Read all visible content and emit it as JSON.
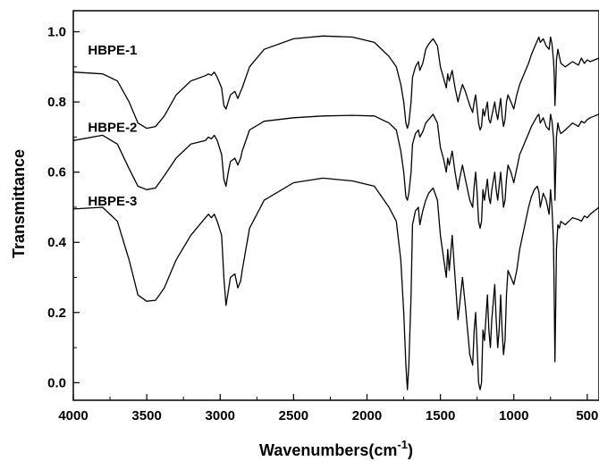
{
  "chart_data": {
    "type": "line",
    "title": "",
    "xlabel": "Wavenumbers(cm",
    "xlabel_sup": "-1",
    "ylabel": "Transmittance",
    "xlim": [
      4000,
      420
    ],
    "ylim": [
      -0.05,
      1.06
    ],
    "x_reversed": true,
    "x_ticks": [
      4000,
      3500,
      3000,
      2500,
      2000,
      1500,
      1000,
      500
    ],
    "x_tick_labels": [
      "4000",
      "3500",
      "3000",
      "2500",
      "2000",
      "1500",
      "1000",
      "500"
    ],
    "y_ticks": [
      0.0,
      0.2,
      0.4,
      0.6,
      0.8,
      1.0
    ],
    "y_tick_labels": [
      "0.0",
      "0.2",
      "0.4",
      "0.6",
      "0.8",
      "1.0"
    ],
    "grid": false,
    "legend": "none",
    "series": [
      {
        "name": "HBPE-1",
        "label_pos": [
          3900,
          0.935
        ],
        "x": [
          4000,
          3800,
          3700,
          3620,
          3560,
          3500,
          3440,
          3380,
          3300,
          3200,
          3100,
          3080,
          3060,
          3040,
          3020,
          2990,
          2975,
          2960,
          2945,
          2930,
          2900,
          2880,
          2860,
          2850,
          2800,
          2700,
          2500,
          2300,
          2100,
          1950,
          1850,
          1800,
          1770,
          1750,
          1735,
          1725,
          1715,
          1700,
          1690,
          1670,
          1650,
          1640,
          1620,
          1600,
          1580,
          1550,
          1520,
          1500,
          1480,
          1460,
          1450,
          1440,
          1420,
          1400,
          1380,
          1370,
          1350,
          1330,
          1300,
          1280,
          1270,
          1260,
          1250,
          1240,
          1230,
          1220,
          1210,
          1200,
          1180,
          1170,
          1160,
          1150,
          1130,
          1120,
          1110,
          1100,
          1090,
          1080,
          1070,
          1060,
          1050,
          1040,
          1020,
          1000,
          980,
          960,
          940,
          920,
          900,
          880,
          860,
          840,
          830,
          820,
          800,
          780,
          760,
          750,
          740,
          730,
          725,
          720,
          715,
          710,
          700,
          690,
          680,
          650,
          600,
          560,
          540,
          520,
          500,
          480,
          450,
          420
        ],
        "values": [
          0.885,
          0.88,
          0.86,
          0.8,
          0.74,
          0.725,
          0.73,
          0.76,
          0.82,
          0.86,
          0.875,
          0.88,
          0.876,
          0.885,
          0.87,
          0.84,
          0.79,
          0.78,
          0.8,
          0.82,
          0.83,
          0.81,
          0.83,
          0.84,
          0.9,
          0.95,
          0.98,
          0.988,
          0.985,
          0.97,
          0.93,
          0.9,
          0.85,
          0.8,
          0.74,
          0.725,
          0.74,
          0.8,
          0.87,
          0.9,
          0.915,
          0.89,
          0.91,
          0.95,
          0.965,
          0.98,
          0.96,
          0.9,
          0.87,
          0.84,
          0.88,
          0.86,
          0.89,
          0.84,
          0.8,
          0.82,
          0.85,
          0.83,
          0.79,
          0.77,
          0.8,
          0.82,
          0.78,
          0.74,
          0.72,
          0.73,
          0.78,
          0.76,
          0.8,
          0.75,
          0.74,
          0.76,
          0.8,
          0.77,
          0.75,
          0.78,
          0.81,
          0.76,
          0.73,
          0.75,
          0.8,
          0.82,
          0.8,
          0.78,
          0.82,
          0.85,
          0.87,
          0.89,
          0.91,
          0.935,
          0.955,
          0.975,
          0.985,
          0.97,
          0.98,
          0.96,
          0.95,
          0.985,
          0.965,
          0.92,
          0.88,
          0.79,
          0.84,
          0.92,
          0.95,
          0.93,
          0.91,
          0.9,
          0.915,
          0.905,
          0.925,
          0.91,
          0.92,
          0.915,
          0.92,
          0.925
        ]
      },
      {
        "name": "HBPE-2",
        "label_pos": [
          3900,
          0.715
        ],
        "x": [
          4000,
          3800,
          3700,
          3620,
          3560,
          3500,
          3440,
          3380,
          3300,
          3200,
          3100,
          3080,
          3060,
          3040,
          3020,
          2990,
          2975,
          2960,
          2945,
          2930,
          2900,
          2880,
          2860,
          2850,
          2800,
          2700,
          2500,
          2300,
          2100,
          1950,
          1850,
          1800,
          1770,
          1750,
          1735,
          1725,
          1715,
          1700,
          1690,
          1670,
          1650,
          1640,
          1620,
          1600,
          1580,
          1550,
          1520,
          1500,
          1480,
          1460,
          1450,
          1440,
          1420,
          1400,
          1380,
          1370,
          1350,
          1330,
          1300,
          1280,
          1270,
          1260,
          1250,
          1240,
          1230,
          1220,
          1210,
          1200,
          1180,
          1170,
          1160,
          1150,
          1130,
          1120,
          1110,
          1100,
          1090,
          1080,
          1070,
          1060,
          1050,
          1040,
          1020,
          1000,
          980,
          960,
          940,
          920,
          900,
          880,
          860,
          840,
          830,
          820,
          800,
          780,
          760,
          750,
          740,
          730,
          725,
          720,
          715,
          710,
          700,
          690,
          680,
          650,
          600,
          560,
          540,
          520,
          500,
          480,
          450,
          420
        ],
        "values": [
          0.69,
          0.705,
          0.68,
          0.61,
          0.56,
          0.55,
          0.555,
          0.59,
          0.64,
          0.68,
          0.69,
          0.7,
          0.695,
          0.705,
          0.69,
          0.65,
          0.58,
          0.56,
          0.6,
          0.63,
          0.64,
          0.62,
          0.64,
          0.66,
          0.72,
          0.745,
          0.755,
          0.76,
          0.762,
          0.76,
          0.74,
          0.72,
          0.66,
          0.6,
          0.53,
          0.52,
          0.54,
          0.6,
          0.68,
          0.71,
          0.72,
          0.7,
          0.715,
          0.74,
          0.75,
          0.765,
          0.74,
          0.67,
          0.64,
          0.6,
          0.64,
          0.62,
          0.66,
          0.6,
          0.55,
          0.58,
          0.62,
          0.58,
          0.52,
          0.5,
          0.56,
          0.6,
          0.54,
          0.46,
          0.44,
          0.46,
          0.55,
          0.52,
          0.58,
          0.53,
          0.51,
          0.55,
          0.6,
          0.55,
          0.52,
          0.56,
          0.6,
          0.55,
          0.5,
          0.52,
          0.58,
          0.62,
          0.6,
          0.57,
          0.61,
          0.65,
          0.67,
          0.69,
          0.71,
          0.73,
          0.745,
          0.76,
          0.765,
          0.74,
          0.755,
          0.73,
          0.72,
          0.765,
          0.745,
          0.7,
          0.64,
          0.52,
          0.6,
          0.7,
          0.74,
          0.72,
          0.71,
          0.72,
          0.74,
          0.73,
          0.745,
          0.74,
          0.75,
          0.755,
          0.76,
          0.765
        ]
      },
      {
        "name": "HBPE-3",
        "label_pos": [
          3900,
          0.505
        ],
        "x": [
          4000,
          3800,
          3700,
          3620,
          3560,
          3500,
          3440,
          3380,
          3300,
          3200,
          3100,
          3080,
          3060,
          3040,
          3020,
          2990,
          2975,
          2960,
          2945,
          2930,
          2900,
          2880,
          2860,
          2850,
          2800,
          2700,
          2500,
          2300,
          2100,
          1950,
          1850,
          1800,
          1770,
          1750,
          1735,
          1725,
          1715,
          1700,
          1690,
          1670,
          1650,
          1640,
          1620,
          1600,
          1580,
          1550,
          1520,
          1500,
          1480,
          1460,
          1450,
          1440,
          1420,
          1400,
          1380,
          1370,
          1350,
          1330,
          1300,
          1280,
          1270,
          1260,
          1250,
          1240,
          1230,
          1220,
          1210,
          1200,
          1180,
          1170,
          1160,
          1150,
          1130,
          1120,
          1110,
          1100,
          1090,
          1080,
          1070,
          1060,
          1050,
          1040,
          1020,
          1000,
          980,
          960,
          940,
          920,
          900,
          880,
          860,
          840,
          830,
          820,
          800,
          780,
          760,
          750,
          740,
          730,
          725,
          720,
          715,
          710,
          700,
          690,
          680,
          650,
          600,
          560,
          540,
          520,
          500,
          480,
          450,
          420
        ],
        "values": [
          0.495,
          0.5,
          0.46,
          0.35,
          0.25,
          0.232,
          0.235,
          0.27,
          0.35,
          0.42,
          0.47,
          0.48,
          0.47,
          0.48,
          0.46,
          0.42,
          0.3,
          0.22,
          0.26,
          0.3,
          0.31,
          0.27,
          0.29,
          0.32,
          0.44,
          0.52,
          0.57,
          0.583,
          0.575,
          0.56,
          0.5,
          0.46,
          0.35,
          0.2,
          0.05,
          -0.02,
          0.05,
          0.25,
          0.45,
          0.49,
          0.5,
          0.45,
          0.49,
          0.52,
          0.54,
          0.555,
          0.52,
          0.42,
          0.36,
          0.3,
          0.38,
          0.32,
          0.42,
          0.3,
          0.18,
          0.22,
          0.3,
          0.22,
          0.08,
          0.05,
          0.15,
          0.2,
          0.1,
          0.0,
          -0.02,
          0.0,
          0.15,
          0.12,
          0.25,
          0.15,
          0.1,
          0.18,
          0.28,
          0.18,
          0.1,
          0.15,
          0.25,
          0.15,
          0.08,
          0.12,
          0.25,
          0.32,
          0.3,
          0.28,
          0.32,
          0.38,
          0.42,
          0.46,
          0.5,
          0.53,
          0.55,
          0.56,
          0.545,
          0.5,
          0.54,
          0.52,
          0.48,
          0.55,
          0.5,
          0.4,
          0.25,
          0.06,
          0.2,
          0.38,
          0.45,
          0.44,
          0.46,
          0.45,
          0.47,
          0.465,
          0.46,
          0.475,
          0.47,
          0.48,
          0.49,
          0.5
        ]
      }
    ]
  }
}
